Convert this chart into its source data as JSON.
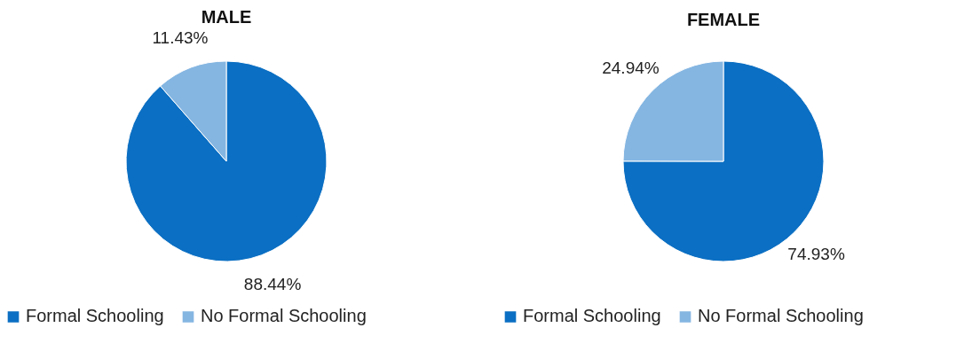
{
  "chart_data": [
    {
      "type": "pie",
      "title": "MALE",
      "categories": [
        "Formal Schooling",
        "No Formal Schooling"
      ],
      "values": [
        88.44,
        11.43
      ],
      "value_labels": [
        "88.44%",
        "11.43%"
      ],
      "colors": [
        "#0b6fc3",
        "#85b6e2"
      ],
      "legend": "bottom"
    },
    {
      "type": "pie",
      "title": "FEMALE",
      "categories": [
        "Formal Schooling",
        "No Formal Schooling"
      ],
      "values": [
        74.93,
        24.94
      ],
      "value_labels": [
        "74.93%",
        "24.94%"
      ],
      "colors": [
        "#0b6fc3",
        "#85b6e2"
      ],
      "legend": "bottom"
    }
  ]
}
